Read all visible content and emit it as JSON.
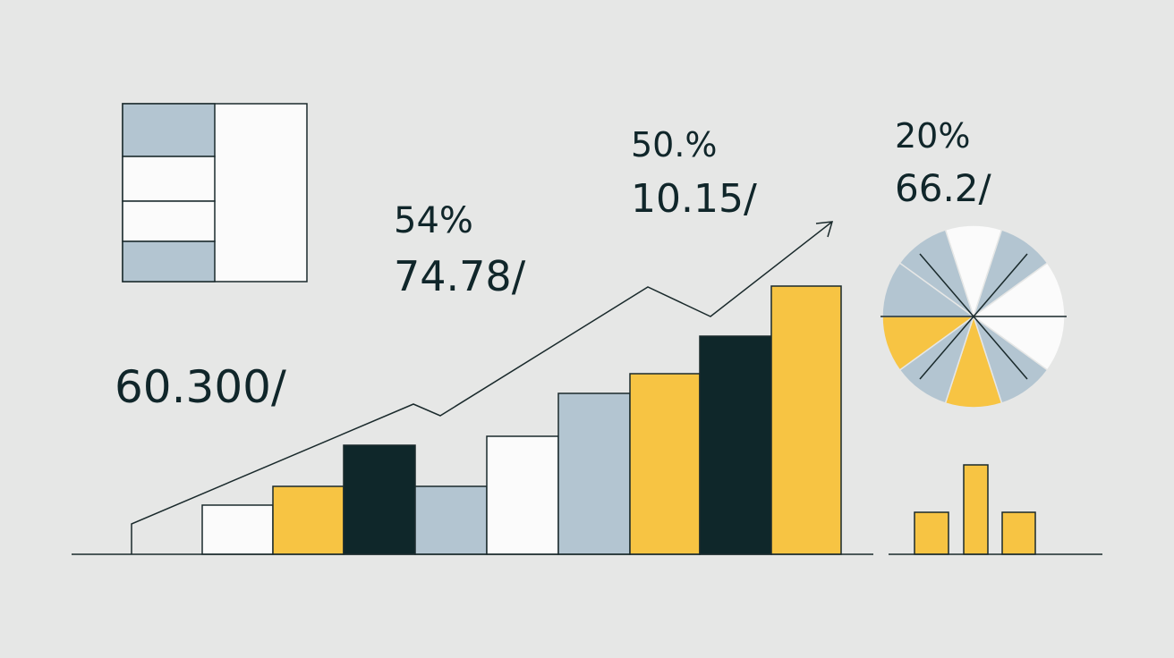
{
  "labels": {
    "left_value": "60.300/",
    "mid_top": "54%",
    "mid_bottom": "74.78/",
    "center_top": "50.%",
    "center_bottom": "10.15/",
    "right_top": "20%",
    "right_bottom": "66.2/"
  }
}
